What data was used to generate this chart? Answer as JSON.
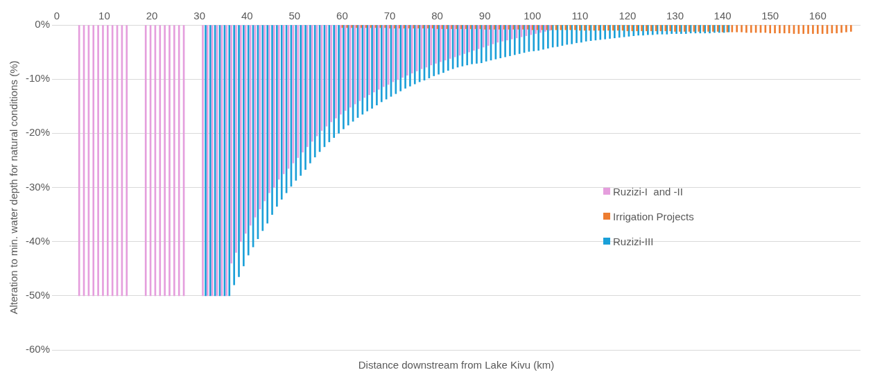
{
  "chart_data": {
    "type": "bar",
    "xlabel": "Distance downstream from Lake Kivu (km)",
    "ylabel": "Alteration to min. water depth for natural conditions (%)",
    "xlim": [
      -1,
      169
    ],
    "xticks": [
      0,
      10,
      20,
      30,
      40,
      50,
      60,
      70,
      80,
      90,
      100,
      110,
      120,
      130,
      140,
      150,
      160
    ],
    "ylim": [
      -60,
      0
    ],
    "yticks": [
      {
        "value": 0,
        "label": "0%"
      },
      {
        "value": -10,
        "label": "-10%"
      },
      {
        "value": -20,
        "label": "-20%"
      },
      {
        "value": -30,
        "label": "-30%"
      },
      {
        "value": -40,
        "label": "-40%"
      },
      {
        "value": -50,
        "label": "-50%"
      },
      {
        "value": -60,
        "label": "-60%"
      }
    ],
    "grid": "y",
    "legend": "right",
    "series": [
      {
        "name": "Ruzizi-I  and -II",
        "color": "#e59edd",
        "x": [
          5,
          6,
          7,
          8,
          9,
          10,
          11,
          12,
          13,
          14,
          15,
          19,
          20,
          21,
          22,
          23,
          24,
          25,
          26,
          27,
          31,
          32,
          33,
          34,
          35,
          36,
          37,
          38,
          39,
          40,
          41,
          42,
          43,
          44,
          45,
          46,
          47,
          48,
          49,
          50,
          51,
          52,
          53,
          54,
          55,
          56,
          57,
          58,
          59,
          60,
          61,
          62,
          63,
          64,
          65,
          66,
          67,
          68,
          69,
          70,
          71,
          72,
          73,
          74,
          75,
          76,
          77,
          78,
          79,
          80,
          81,
          82,
          83,
          84,
          85,
          86,
          87,
          88,
          89,
          90,
          91,
          92,
          93,
          94,
          95,
          96,
          97,
          98,
          99,
          100,
          101,
          102,
          103,
          104
        ],
        "values": [
          -50,
          -50,
          -50,
          -50,
          -50,
          -50,
          -50,
          -50,
          -50,
          -50,
          -50,
          -50,
          -50,
          -50,
          -50,
          -50,
          -50,
          -50,
          -50,
          -50,
          -50,
          -50,
          -50,
          -50,
          -50,
          -50,
          -44,
          -42,
          -40,
          -38.5,
          -37,
          -35.5,
          -34,
          -32.5,
          -31,
          -30,
          -28.5,
          -27.5,
          -26.5,
          -25.5,
          -24.5,
          -23.5,
          -22.5,
          -21.5,
          -20.5,
          -19.5,
          -18.7,
          -17.9,
          -17.2,
          -16.5,
          -15.8,
          -15.2,
          -14.6,
          -14,
          -13.4,
          -12.9,
          -12.4,
          -11.9,
          -11.4,
          -11,
          -10.5,
          -10.1,
          -9.7,
          -9.3,
          -8.9,
          -8.5,
          -8.1,
          -7.8,
          -7.4,
          -7.1,
          -6.8,
          -6.5,
          -6.2,
          -5.9,
          -5.6,
          -5.3,
          -5,
          -4.7,
          -4.4,
          -4.1,
          -3.8,
          -3.5,
          -3.2,
          -3,
          -2.8,
          -2.6,
          -2.4,
          -2.2,
          -2,
          -1.8,
          -1.6,
          -1.4,
          -1.2,
          -1
        ]
      },
      {
        "name": "Irrigation Projects",
        "color": "#ed7d31",
        "x": [
          60,
          61,
          62,
          63,
          64,
          65,
          66,
          67,
          68,
          69,
          70,
          71,
          72,
          73,
          74,
          75,
          76,
          77,
          78,
          79,
          80,
          81,
          82,
          83,
          84,
          85,
          86,
          87,
          88,
          89,
          90,
          91,
          92,
          93,
          94,
          95,
          96,
          97,
          98,
          99,
          100,
          101,
          102,
          103,
          104,
          105,
          106,
          107,
          108,
          109,
          110,
          111,
          112,
          113,
          114,
          115,
          116,
          117,
          118,
          119,
          120,
          121,
          122,
          123,
          124,
          125,
          126,
          127,
          128,
          129,
          130,
          131,
          132,
          133,
          134,
          135,
          136,
          137,
          138,
          139,
          140,
          141,
          142,
          143,
          144,
          145,
          146,
          147,
          148,
          149,
          150,
          151,
          152,
          153,
          154,
          155,
          156,
          157,
          158,
          159,
          160,
          161,
          162,
          163,
          164,
          165,
          166,
          167
        ],
        "values": [
          -0.5,
          -0.5,
          -0.5,
          -0.5,
          -0.5,
          -0.5,
          -0.5,
          -0.5,
          -0.5,
          -0.5,
          -0.6,
          -0.6,
          -0.6,
          -0.6,
          -0.6,
          -0.6,
          -0.6,
          -0.6,
          -0.6,
          -0.6,
          -0.7,
          -0.7,
          -0.7,
          -0.7,
          -0.7,
          -0.7,
          -0.7,
          -0.7,
          -0.7,
          -0.7,
          -0.8,
          -0.8,
          -0.8,
          -0.8,
          -0.8,
          -0.8,
          -0.8,
          -0.8,
          -0.8,
          -0.8,
          -0.9,
          -0.9,
          -0.9,
          -0.9,
          -0.9,
          -0.9,
          -0.9,
          -0.9,
          -0.9,
          -0.9,
          -1,
          -1,
          -1,
          -1,
          -1,
          -1,
          -1,
          -1,
          -1,
          -1,
          -1.1,
          -1.1,
          -1.1,
          -1.1,
          -1.1,
          -1.1,
          -1.1,
          -1.1,
          -1.1,
          -1.1,
          -1.2,
          -1.2,
          -1.2,
          -1.2,
          -1.2,
          -1.2,
          -1.2,
          -1.2,
          -1.2,
          -1.2,
          -1.3,
          -1.3,
          -1.3,
          -1.3,
          -1.3,
          -1.4,
          -1.4,
          -1.4,
          -1.4,
          -1.4,
          -1.5,
          -1.5,
          -1.5,
          -1.5,
          -1.5,
          -1.6,
          -1.6,
          -1.6,
          -1.6,
          -1.6,
          -1.6,
          -1.6,
          -1.6,
          -1.5,
          -1.5,
          -1.4,
          -1.3,
          -1.2
        ]
      },
      {
        "name": "Ruzizi-III",
        "color": "#1aa0d8",
        "x": [
          31,
          32,
          33,
          34,
          35,
          36,
          37,
          38,
          39,
          40,
          41,
          42,
          43,
          44,
          45,
          46,
          47,
          48,
          49,
          50,
          51,
          52,
          53,
          54,
          55,
          56,
          57,
          58,
          59,
          60,
          61,
          62,
          63,
          64,
          65,
          66,
          67,
          68,
          69,
          70,
          71,
          72,
          73,
          74,
          75,
          76,
          77,
          78,
          79,
          80,
          81,
          82,
          83,
          84,
          85,
          86,
          87,
          88,
          89,
          90,
          91,
          92,
          93,
          94,
          95,
          96,
          97,
          98,
          99,
          100,
          101,
          102,
          103,
          104,
          105,
          106,
          107,
          108,
          109,
          110,
          111,
          112,
          113,
          114,
          115,
          116,
          117,
          118,
          119,
          120,
          121,
          122,
          123,
          124,
          125,
          126,
          127,
          128,
          129,
          130,
          131,
          132,
          133,
          134,
          135,
          136,
          137,
          138,
          139,
          140,
          141
        ],
        "values": [
          -50,
          -50,
          -50,
          -50,
          -50,
          -50,
          -48,
          -46.5,
          -44.5,
          -42.5,
          -41,
          -39.5,
          -38,
          -36.6,
          -35,
          -33.5,
          -32.2,
          -31,
          -29.8,
          -28.7,
          -27.8,
          -26.7,
          -25.5,
          -24.4,
          -23.4,
          -22.5,
          -21.6,
          -20.8,
          -20,
          -19.2,
          -18.5,
          -17.8,
          -17.1,
          -16.5,
          -15.9,
          -15.4,
          -14.8,
          -14.2,
          -13.7,
          -13.2,
          -12.7,
          -12.2,
          -11.7,
          -11.3,
          -10.9,
          -10.5,
          -10.2,
          -9.8,
          -9.4,
          -9.1,
          -8.8,
          -8.4,
          -8.1,
          -7.8,
          -7.6,
          -7.4,
          -7.2,
          -7.1,
          -7,
          -6.7,
          -6.5,
          -6.3,
          -6.1,
          -5.9,
          -5.7,
          -5.5,
          -5.3,
          -5.1,
          -4.9,
          -4.8,
          -4.7,
          -4.5,
          -4.3,
          -4.1,
          -4,
          -3.8,
          -3.6,
          -3.5,
          -3.3,
          -3.2,
          -3,
          -2.9,
          -2.8,
          -2.7,
          -2.6,
          -2.5,
          -2.4,
          -2.3,
          -2.2,
          -2.1,
          -2,
          -1.9,
          -1.9,
          -1.8,
          -1.8,
          -1.7,
          -1.7,
          -1.7,
          -1.6,
          -1.6,
          -1.6,
          -1.6,
          -1.5,
          -1.5,
          -1.5,
          -1.5,
          -1.5,
          -1.4,
          -1.4,
          -1.4,
          -1.3
        ]
      }
    ]
  }
}
